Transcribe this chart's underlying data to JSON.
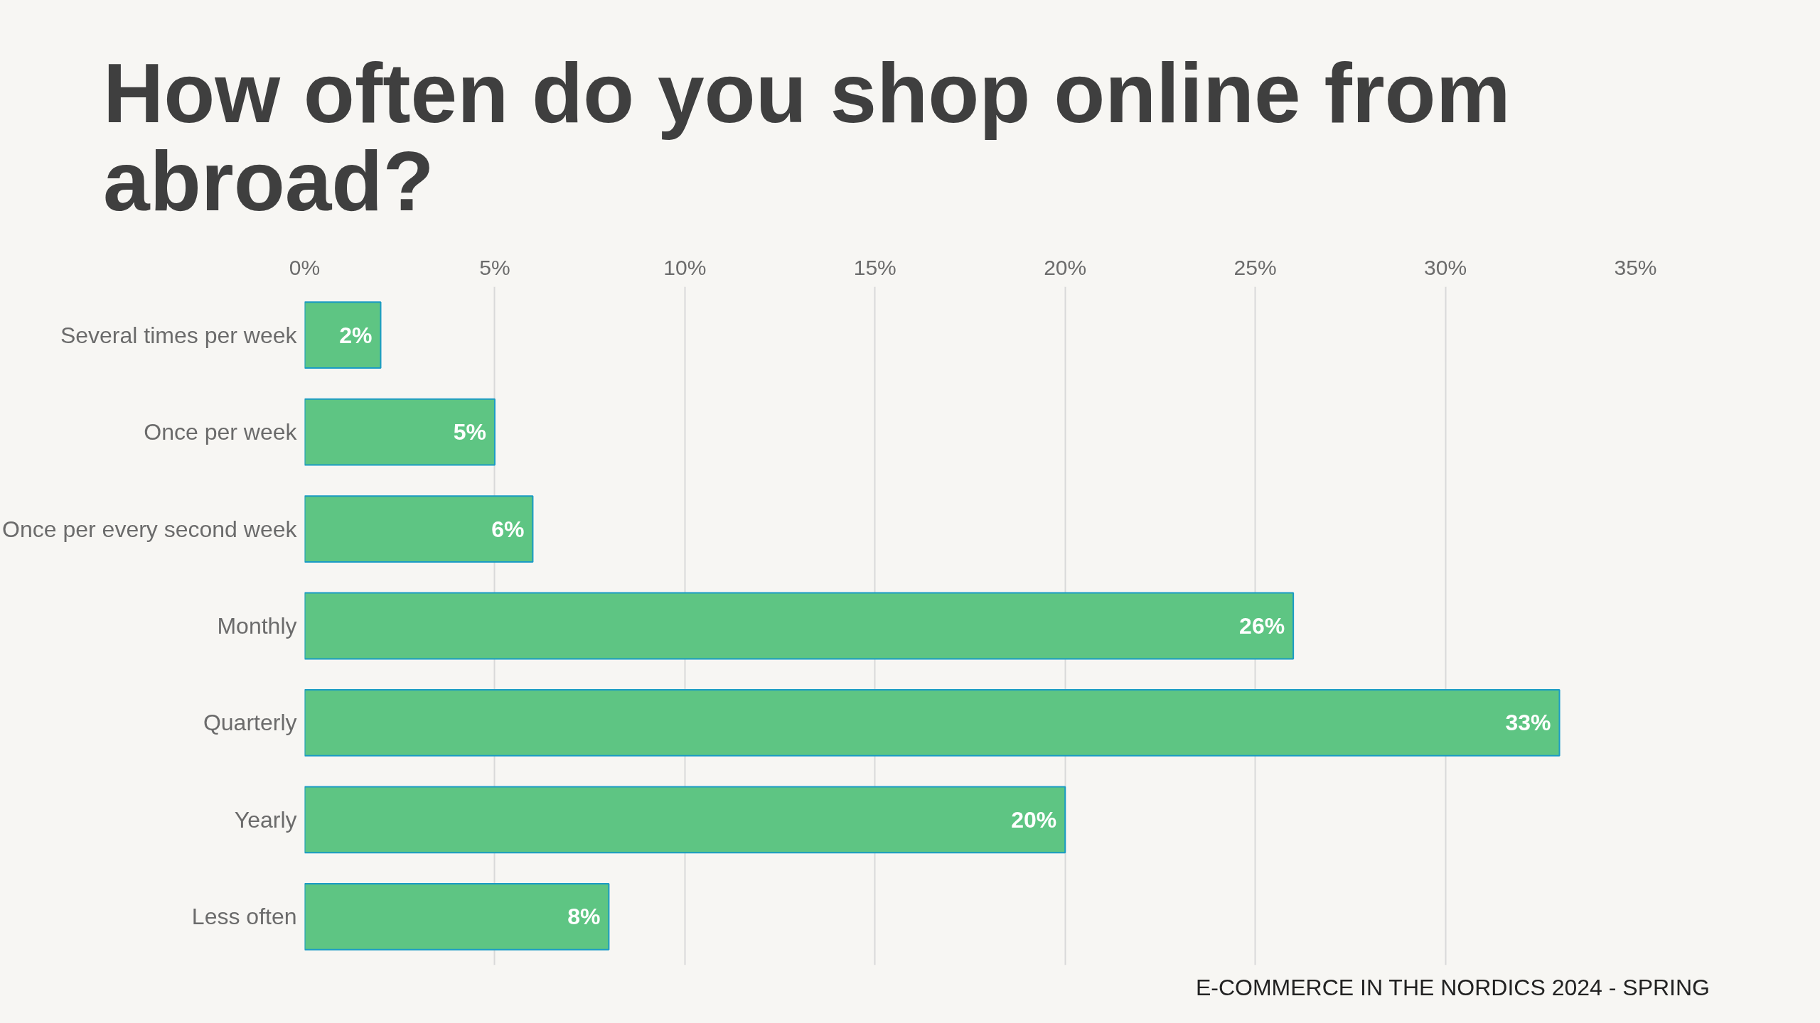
{
  "chart_data": {
    "type": "bar",
    "orientation": "horizontal",
    "title": "How often do you shop online from abroad?",
    "categories": [
      "Several times per week",
      "Once per week",
      "Once per every second week",
      "Monthly",
      "Quarterly",
      "Yearly",
      "Less often"
    ],
    "values": [
      2,
      5,
      6,
      26,
      33,
      20,
      8
    ],
    "value_labels": [
      "2%",
      "5%",
      "6%",
      "26%",
      "33%",
      "20%",
      "8%"
    ],
    "color": "#5ec583",
    "xlim": [
      0,
      35
    ],
    "xticks": [
      {
        "value": 0,
        "label": "0%"
      },
      {
        "value": 5,
        "label": "5%"
      },
      {
        "value": 10,
        "label": "10%"
      },
      {
        "value": 15,
        "label": "15%"
      },
      {
        "value": 20,
        "label": "20%"
      },
      {
        "value": 25,
        "label": "25%"
      },
      {
        "value": 30,
        "label": "30%"
      },
      {
        "value": 35,
        "label": "35%"
      }
    ],
    "grid": "x",
    "annotations": [
      "E-COMMERCE IN THE NORDICS 2024 - SPRING"
    ]
  }
}
